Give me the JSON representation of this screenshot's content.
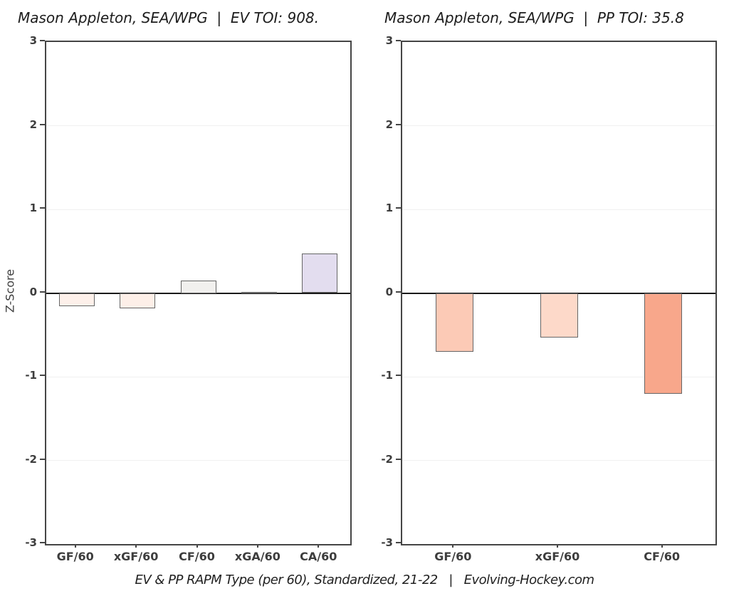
{
  "figure": {
    "ylabel": "Z-Score",
    "caption": "EV & PP RAPM Type (per 60), Standardized, 21-22   |   Evolving-Hockey.com",
    "background": "#ffffff"
  },
  "colors": {
    "plot_border": "#454545",
    "zero_line": "#1a1a1a",
    "gridline": "#f0f0f0",
    "bar_border": "#666666",
    "tick_label": "#3d3d3d",
    "title_text": "#1c1c1c",
    "caption_text": "#222222"
  },
  "chart_data": [
    {
      "type": "bar",
      "title": "Mason Appleton, SEA/WPG  |  EV TOI: 908.",
      "categories": [
        "GF/60",
        "xGF/60",
        "CF/60",
        "xGA/60",
        "CA/60"
      ],
      "values": [
        -0.16,
        -0.18,
        0.15,
        0.01,
        0.47
      ],
      "bar_colors": [
        "#fdf0ea",
        "#fdefe8",
        "#f1f0ee",
        "#f1f0ee",
        "#e3ddef"
      ],
      "xlabel": "",
      "ylabel": "Z-Score",
      "ylim": [
        -3,
        3
      ],
      "yticks": [
        3,
        2,
        1,
        0,
        -1,
        -2,
        -3
      ],
      "grid": true
    },
    {
      "type": "bar",
      "title": "Mason Appleton, SEA/WPG  |  PP TOI: 35.8",
      "categories": [
        "GF/60",
        "xGF/60",
        "CF/60"
      ],
      "values": [
        -0.7,
        -0.53,
        -1.2
      ],
      "bar_colors": [
        "#fccab6",
        "#fdd9c9",
        "#f8a78b"
      ],
      "xlabel": "",
      "ylabel": "Z-Score",
      "ylim": [
        -3,
        3
      ],
      "yticks": [
        3,
        2,
        1,
        0,
        -1,
        -2,
        -3
      ],
      "grid": true
    }
  ]
}
